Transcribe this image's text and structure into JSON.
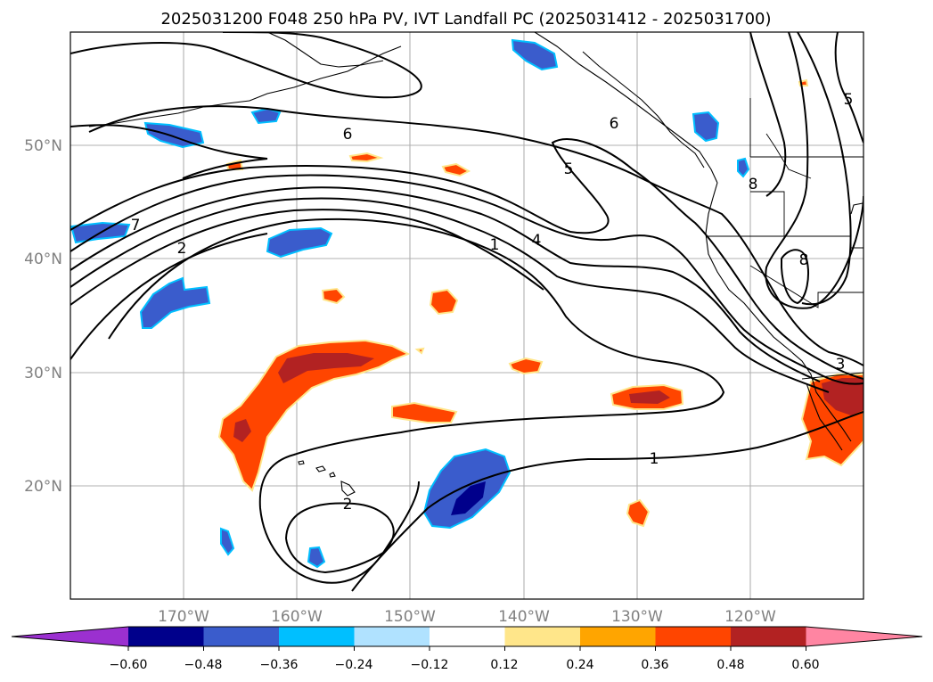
{
  "title": "2025031200 F048 250 hPa PV, IVT Landfall PC (2025031412 - 2025031700)",
  "map": {
    "lat_labels": [
      {
        "text": "50°N",
        "lat": 50
      },
      {
        "text": "40°N",
        "lat": 40
      },
      {
        "text": "30°N",
        "lat": 30
      },
      {
        "text": "20°N",
        "lat": 20
      }
    ],
    "lon_labels": [
      {
        "text": "170°W",
        "lon": -170
      },
      {
        "text": "160°W",
        "lon": -160
      },
      {
        "text": "150°W",
        "lon": -150
      },
      {
        "text": "140°W",
        "lon": -140
      },
      {
        "text": "130°W",
        "lon": -130
      },
      {
        "text": "120°W",
        "lon": -120
      }
    ],
    "extent": {
      "lon_min": -180,
      "lon_max": -110,
      "lat_min": 10,
      "lat_max": 60
    },
    "contour_labels": [
      "6",
      "7",
      "2",
      "5",
      "1",
      "4",
      "6",
      "5",
      "8",
      "8",
      "3",
      "1",
      "2"
    ]
  },
  "colorbar": {
    "ticks": [
      "−0.60",
      "−0.48",
      "−0.36",
      "−0.24",
      "−0.12",
      "0.12",
      "0.24",
      "0.36",
      "0.48",
      "0.60"
    ],
    "colors": [
      "#9b30d0",
      "#00008b",
      "#3a5ccc",
      "#00bfff",
      "#b0e2ff",
      "#ffffff",
      "#ffe68a",
      "#ffa500",
      "#ff4500",
      "#b22222",
      "#ff85a2"
    ]
  }
}
